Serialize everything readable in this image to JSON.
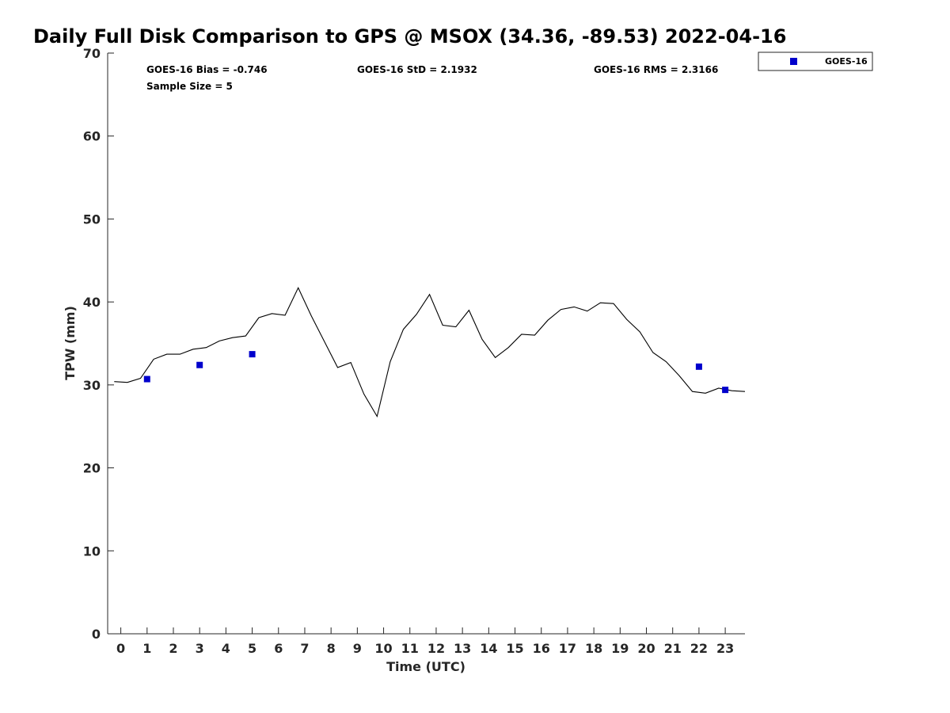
{
  "chart_data": {
    "type": "scatter",
    "title": "Daily Full Disk Comparison to GPS @ MSOX (34.36, -89.53) 2022-04-16",
    "xlabel": "Time (UTC)",
    "ylabel": "TPW (mm)",
    "xlim": [
      -0.5,
      23.75
    ],
    "ylim": [
      0,
      70
    ],
    "x_ticks": [
      0,
      1,
      2,
      3,
      4,
      5,
      6,
      7,
      8,
      9,
      10,
      11,
      12,
      13,
      14,
      15,
      16,
      17,
      18,
      19,
      20,
      21,
      22,
      23
    ],
    "y_ticks": [
      0,
      10,
      20,
      30,
      40,
      50,
      60,
      70
    ],
    "grid": false,
    "legend_position": "outside-top-right",
    "stats": {
      "bias": "GOES-16 Bias = -0.746",
      "std": "GOES-16 StD = 2.1932",
      "rms": "GOES-16 RMS = 2.3166",
      "sample": "Sample Size = 5"
    },
    "series": [
      {
        "type": "line",
        "color": "#000000",
        "x": [
          -0.25,
          0.25,
          0.75,
          1.25,
          1.75,
          2.25,
          2.75,
          3.25,
          3.75,
          4.25,
          4.75,
          5.25,
          5.75,
          6.25,
          6.75,
          7.25,
          7.75,
          8.25,
          8.75,
          9.25,
          9.75,
          10.25,
          10.75,
          11.25,
          11.75,
          12.25,
          12.75,
          13.25,
          13.75,
          14.25,
          14.75,
          15.25,
          15.75,
          16.25,
          16.75,
          17.25,
          17.75,
          18.25,
          18.75,
          19.25,
          19.75,
          20.25,
          20.75,
          21.25,
          21.75,
          22.25,
          22.75,
          23.25,
          23.75
        ],
        "y": [
          30.4,
          30.3,
          30.8,
          33.1,
          33.7,
          33.7,
          34.3,
          34.5,
          35.3,
          35.7,
          35.9,
          38.1,
          38.6,
          38.4,
          41.7,
          38.3,
          35.2,
          32.1,
          32.7,
          28.9,
          26.2,
          32.8,
          36.7,
          38.5,
          40.9,
          37.2,
          37.0,
          39.0,
          35.5,
          33.3,
          34.5,
          36.1,
          36.0,
          37.8,
          39.1,
          39.4,
          38.9,
          39.9,
          39.8,
          37.9,
          36.4,
          33.9,
          32.8,
          31.1,
          29.2,
          29.0,
          29.6,
          29.3,
          29.2
        ]
      },
      {
        "name": "GOES-16",
        "type": "scatter",
        "marker": "square",
        "color": "#0000cc",
        "x": [
          1,
          3,
          5,
          22,
          23
        ],
        "y": [
          30.7,
          32.4,
          33.7,
          32.2,
          29.4
        ]
      }
    ]
  }
}
